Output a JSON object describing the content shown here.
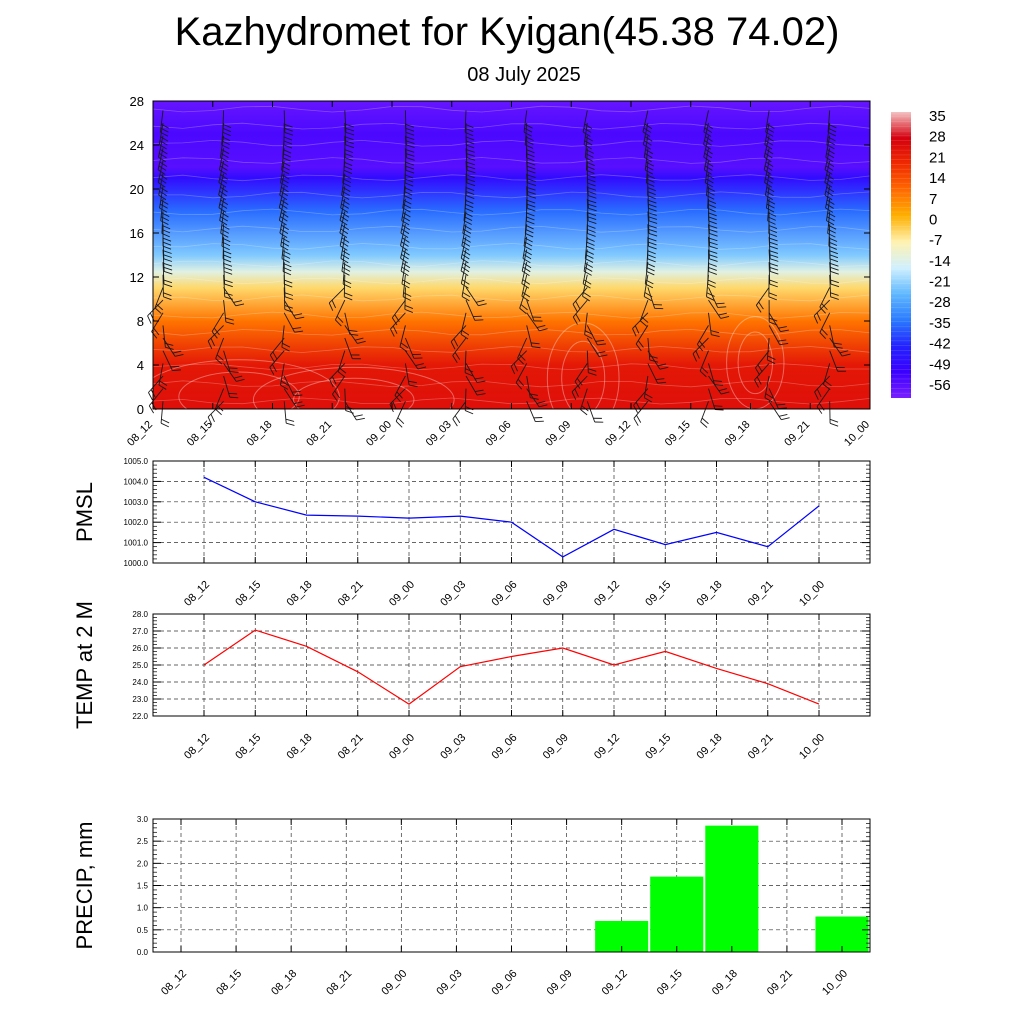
{
  "title": "Kazhydromet for Kyigan(45.38 74.02)",
  "subtitle": "08 July 2025",
  "chart_data": [
    {
      "type": "heatmap",
      "title": "",
      "ylabel": "",
      "xlabel": "",
      "x_categories": [
        "08_12",
        "08_15",
        "08_18",
        "08_21",
        "09_00",
        "09_03",
        "09_06",
        "09_09",
        "09_12",
        "09_15",
        "09_18",
        "09_21",
        "10_00"
      ],
      "y_ticks": [
        0,
        4,
        8,
        12,
        16,
        20,
        24,
        28
      ],
      "ylim": [
        0,
        28
      ],
      "colorbar": {
        "labels": [
          "35",
          "28",
          "21",
          "14",
          "7",
          "0",
          "-7",
          "-14",
          "-21",
          "-28",
          "-35",
          "-42",
          "-49",
          "-56"
        ],
        "range": [
          -63,
          42
        ],
        "stops": [
          "#f4c2c2",
          "#d4000f",
          "#f02a00",
          "#ff6a00",
          "#ffb000",
          "#fff2b0",
          "#d0f0ff",
          "#5fb8ff",
          "#2a7bff",
          "#2222ff",
          "#3a00ff",
          "#7a1fff"
        ]
      },
      "vertical_profile": [
        {
          "level": 0,
          "value": 29
        },
        {
          "level": 4,
          "value": 27
        },
        {
          "level": 8,
          "value": 12
        },
        {
          "level": 11,
          "value": -2
        },
        {
          "level": 12.5,
          "value": -12
        },
        {
          "level": 14,
          "value": -22
        },
        {
          "level": 18,
          "value": -36
        },
        {
          "level": 21,
          "value": -50
        },
        {
          "level": 22,
          "value": -58
        },
        {
          "level": 25,
          "value": -56
        },
        {
          "level": 28,
          "value": -60
        }
      ],
      "overlay": "wind barbs and temperature contours"
    },
    {
      "type": "line",
      "ylabel": "PMSL",
      "xlabel": "",
      "x": [
        "08_12",
        "08_15",
        "08_18",
        "08_21",
        "09_00",
        "09_03",
        "09_06",
        "09_09",
        "09_12",
        "09_15",
        "09_18",
        "09_21",
        "10_00"
      ],
      "series": [
        {
          "values": [
            1004.2,
            1003.0,
            1002.35,
            1002.3,
            1002.2,
            1002.3,
            1002.0,
            1000.3,
            1001.65,
            1000.9,
            1001.5,
            1000.8,
            1002.8
          ]
        }
      ],
      "ylim": [
        1000.0,
        1005.0
      ],
      "y_ticks": [
        "1000.0",
        "1001.0",
        "1002.0",
        "1003.0",
        "1004.0",
        "1005.0"
      ],
      "color": "#0000ff",
      "grid": true
    },
    {
      "type": "line",
      "ylabel": "TEMP at 2 M",
      "xlabel": "",
      "x": [
        "08_12",
        "08_15",
        "08_18",
        "08_21",
        "09_00",
        "09_03",
        "09_06",
        "09_09",
        "09_12",
        "09_15",
        "09_18",
        "09_21",
        "10_00"
      ],
      "series": [
        {
          "values": [
            25.0,
            27.05,
            26.1,
            24.6,
            22.7,
            24.9,
            25.5,
            26.0,
            25.0,
            25.8,
            24.8,
            23.9,
            22.7
          ]
        }
      ],
      "ylim": [
        22.0,
        28.0
      ],
      "y_ticks": [
        "22.0",
        "23.0",
        "24.0",
        "25.0",
        "26.0",
        "27.0",
        "28.0"
      ],
      "color": "#ff0000",
      "grid": true
    },
    {
      "type": "bar",
      "ylabel": "PRECIP, mm",
      "xlabel": "",
      "categories": [
        "08_12",
        "08_15",
        "08_18",
        "08_21",
        "09_00",
        "09_03",
        "09_06",
        "09_09",
        "09_12",
        "09_15",
        "09_18",
        "09_21",
        "10_00"
      ],
      "values": [
        0,
        0,
        0,
        0,
        0,
        0,
        0,
        0,
        0.7,
        1.7,
        2.85,
        0,
        0.8
      ],
      "ylim": [
        0,
        3.0
      ],
      "y_ticks": [
        "0.0",
        "0.5",
        "1.0",
        "1.5",
        "2.0",
        "2.5",
        "3.0"
      ],
      "color": "#00ff00",
      "grid": true
    }
  ]
}
